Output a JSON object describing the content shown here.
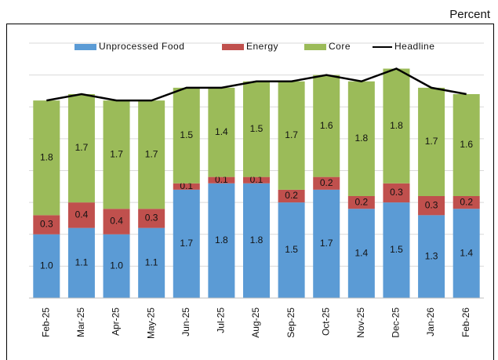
{
  "chart_data": {
    "type": "stacked_bar_line",
    "unit_label": "Percent",
    "categories": [
      "Feb-25",
      "Mar-25",
      "Apr-25",
      "May-25",
      "Jun-25",
      "Jul-25",
      "Aug-25",
      "Sep-25",
      "Oct-25",
      "Nov-25",
      "Dec-25",
      "Jan-26",
      "Feb-26"
    ],
    "series": [
      {
        "name": "Unprocessed Food",
        "color": "#5b9bd5",
        "kind": "bar",
        "values": [
          1.0,
          1.1,
          1.0,
          1.1,
          1.7,
          1.8,
          1.8,
          1.5,
          1.7,
          1.4,
          1.5,
          1.3,
          1.4
        ],
        "value_labels": [
          "1.0",
          "1.1",
          "1.0",
          "1.1",
          "1.7",
          "1.8",
          "1.8",
          "1.5",
          "1.7",
          "1.4",
          "1.5",
          "1.3",
          "1.4"
        ]
      },
      {
        "name": "Energy",
        "color": "#c0504d",
        "kind": "bar",
        "values": [
          0.3,
          0.4,
          0.4,
          0.3,
          0.1,
          0.1,
          0.1,
          0.2,
          0.2,
          0.2,
          0.3,
          0.3,
          0.2
        ],
        "value_labels": [
          "0.3",
          "0.4",
          "0.4",
          "0.3",
          "0.1",
          "0.1",
          "0.1",
          "0.2",
          "0.2",
          "0.2",
          "0.3",
          "0.3",
          "0.2"
        ]
      },
      {
        "name": "Core",
        "color": "#9bbb59",
        "kind": "bar",
        "values": [
          1.8,
          1.7,
          1.7,
          1.7,
          1.5,
          1.4,
          1.5,
          1.7,
          1.6,
          1.8,
          1.8,
          1.7,
          1.6
        ],
        "value_labels": [
          "1.8",
          "1.7",
          "1.7",
          "1.7",
          "1.5",
          "1.4",
          "1.5",
          "1.7",
          "1.6",
          "1.8",
          "1.8",
          "1.7",
          "1.6"
        ]
      },
      {
        "name": "Headline",
        "color": "#000000",
        "kind": "line",
        "values": [
          3.1,
          3.2,
          3.1,
          3.1,
          3.3,
          3.3,
          3.4,
          3.4,
          3.5,
          3.4,
          3.6,
          3.3,
          3.2
        ]
      }
    ],
    "ylim": [
      0,
      4
    ],
    "yticks": [
      0,
      0.5,
      1,
      1.5,
      2,
      2.5,
      3,
      3.5,
      4
    ],
    "grid": true
  }
}
